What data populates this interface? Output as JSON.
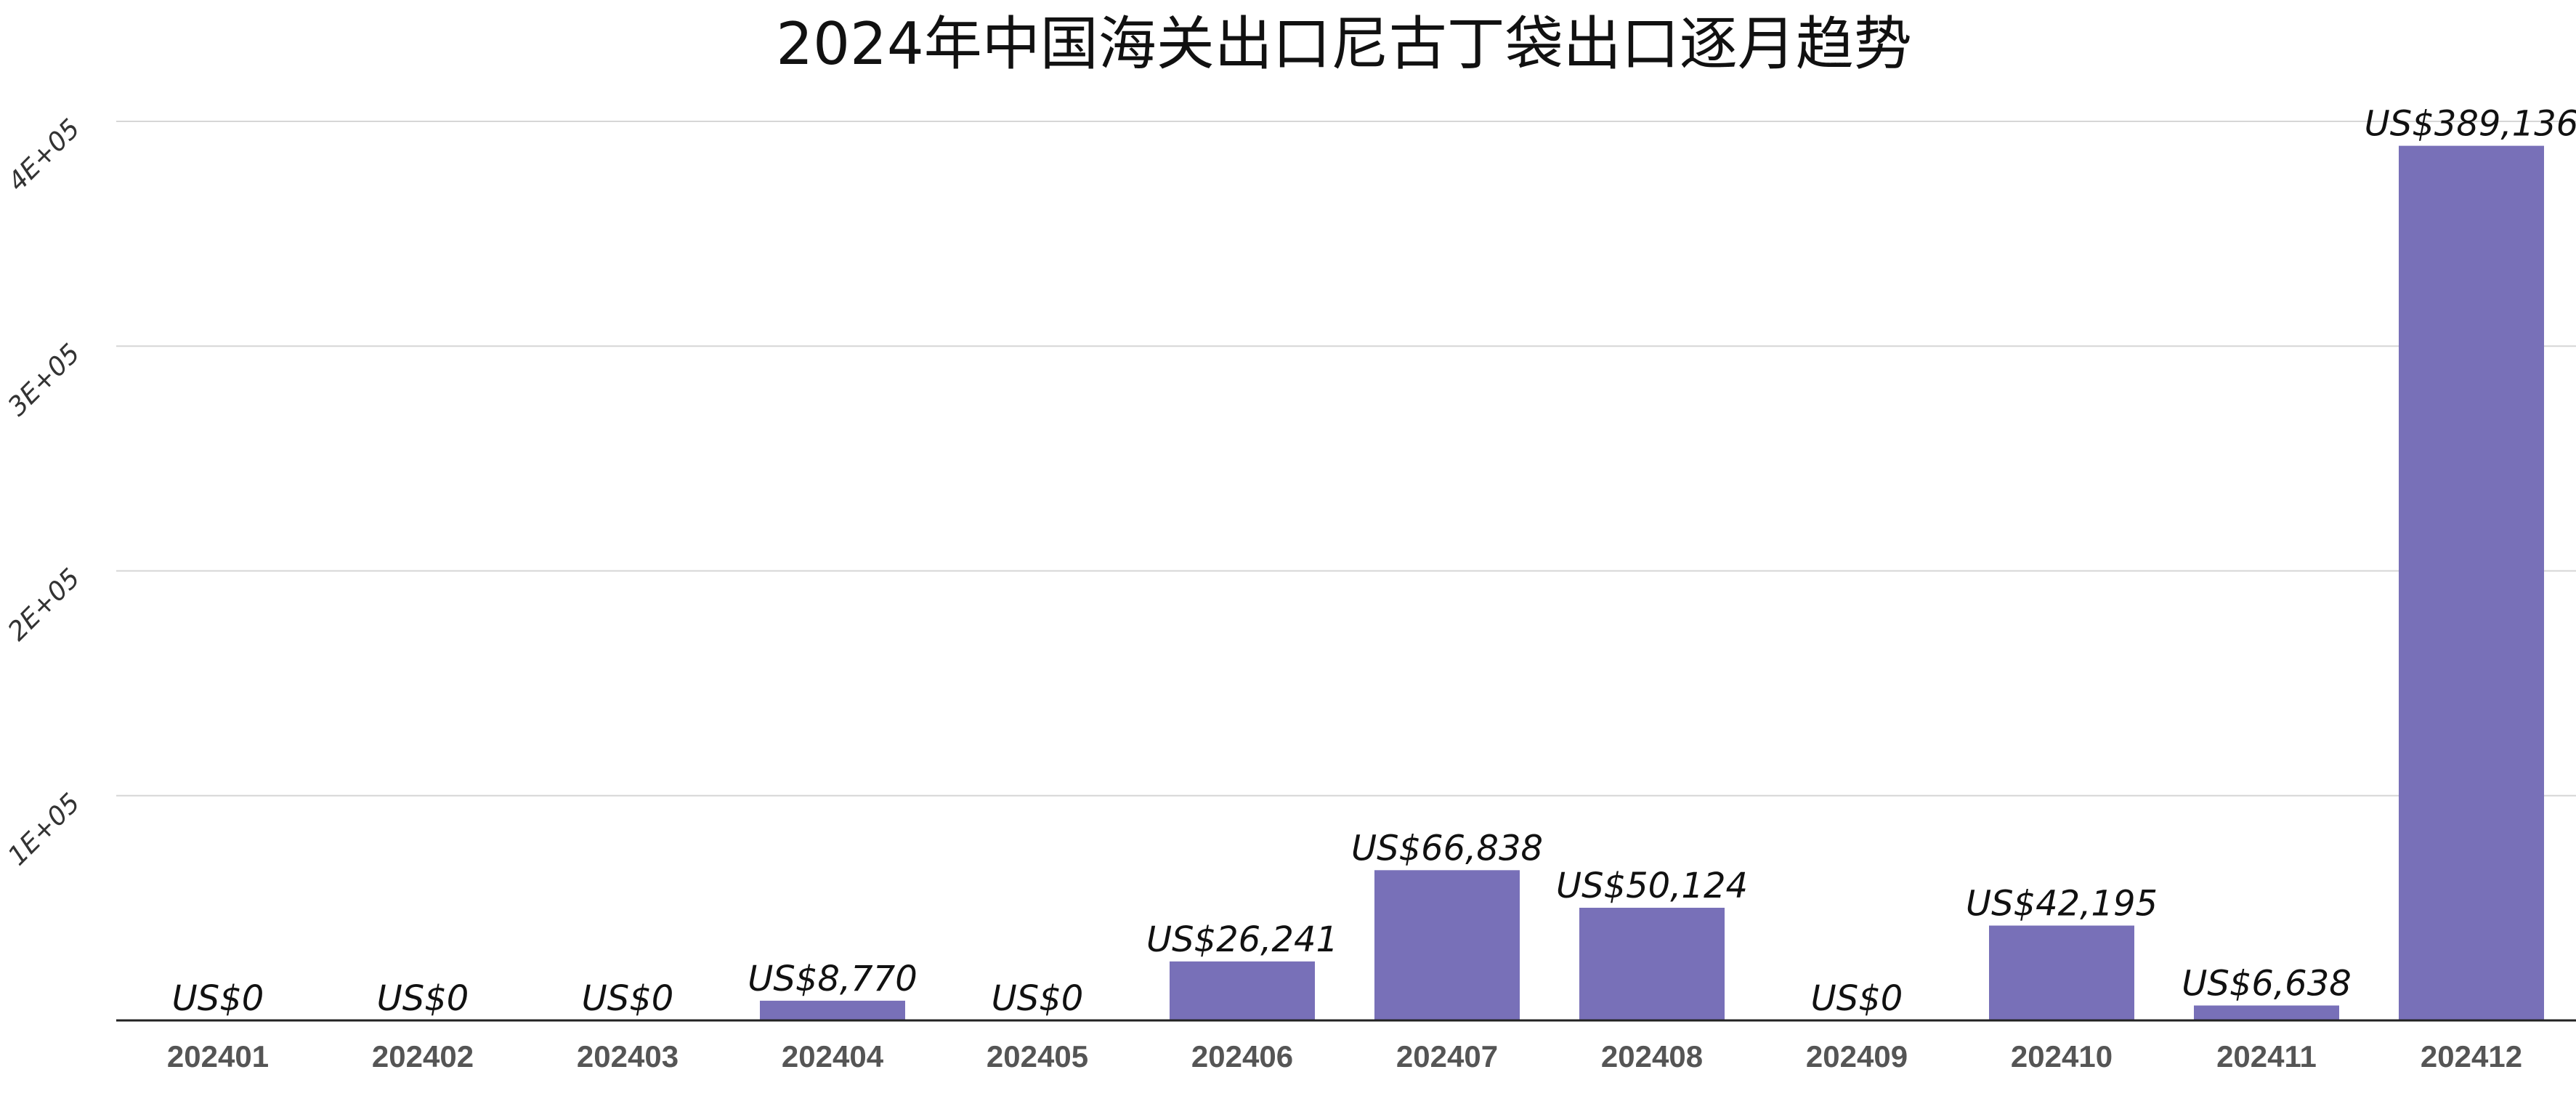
{
  "chart_data": {
    "type": "bar",
    "title": "2024年中国海关出口尼古丁袋出口逐月趋势",
    "xlabel": "",
    "ylabel": "",
    "categories": [
      "202401",
      "202402",
      "202403",
      "202404",
      "202405",
      "202406",
      "202407",
      "202408",
      "202409",
      "202410",
      "202411",
      "202412"
    ],
    "values": [
      0,
      0,
      0,
      8770,
      0,
      26241,
      66838,
      50124,
      0,
      42195,
      6638,
      389136
    ],
    "data_labels": [
      "US$0",
      "US$0",
      "US$0",
      "US$8,770",
      "US$0",
      "US$26,241",
      "US$66,838",
      "US$50,124",
      "US$0",
      "US$42,195",
      "US$6,638",
      "US$389,136"
    ],
    "ylim": [
      0,
      400000
    ],
    "yticks": [
      100000,
      200000,
      300000,
      400000
    ],
    "ytick_labels": [
      "1E+05",
      "2E+05",
      "3E+05",
      "4E+05"
    ],
    "bar_color": "#7870b8",
    "grid": true,
    "legend": "none"
  }
}
